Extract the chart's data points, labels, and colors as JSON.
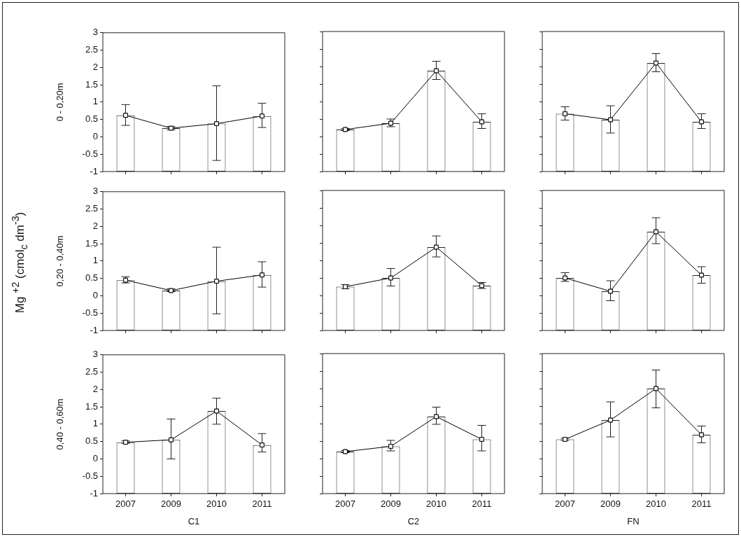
{
  "chart_data": [
    {
      "type": "bar",
      "ylabel": "0 - 0,20m",
      "categories": [
        "2007",
        "2009",
        "2010",
        "2011"
      ],
      "ylim": [
        -1,
        3
      ],
      "yticks": [
        -1,
        -0.5,
        0,
        0.5,
        1,
        1.5,
        2,
        2.5,
        3
      ],
      "grid": false,
      "legend": false,
      "tick_labels": "y",
      "annotations": [
        "Mg $^{+2}$ (cmol$_{c}$ dm$^{-3}$)"
      ],
      "series": [
        {
          "color": "#ffffff",
          "base": [
            -1,
            -1,
            -1,
            -1
          ],
          "values": [
            1.62,
            1.25,
            1.38,
            1.6
          ]
        },
        {
          "type": "line",
          "color": "#000000",
          "marker": "square",
          "values": [
            0.62,
            0.25,
            0.38,
            0.6
          ],
          "errors": [
            [
              0.33,
              0.93
            ],
            [
              0.2,
              0.3
            ],
            [
              -0.68,
              1.47
            ],
            [
              0.27,
              0.97
            ]
          ]
        }
      ]
    },
    {
      "type": "bar",
      "categories": [
        "2007",
        "2009",
        "2010",
        "2011"
      ],
      "ylim": [
        -1,
        3
      ],
      "yticks": [
        -1,
        -0.5,
        0,
        0.5,
        1,
        1.5,
        2,
        2.5,
        3
      ],
      "grid": false,
      "legend": false,
      "tick_labels": false,
      "series": [
        {
          "color": "#ffffff",
          "base": [
            -1,
            -1,
            -1,
            -1
          ],
          "values": [
            1.2,
            1.38,
            2.88,
            1.42
          ]
        },
        {
          "type": "line",
          "color": "#000000",
          "marker": "square",
          "values": [
            0.2,
            0.38,
            1.88,
            0.42
          ],
          "errors": [
            [
              0.17,
              0.23
            ],
            [
              0.28,
              0.5
            ],
            [
              1.63,
              2.15
            ],
            [
              0.23,
              0.65
            ]
          ]
        }
      ]
    },
    {
      "type": "bar",
      "categories": [
        "2007",
        "2009",
        "2010",
        "2011"
      ],
      "ylim": [
        -1,
        3
      ],
      "yticks": [
        -1,
        -0.5,
        0,
        0.5,
        1,
        1.5,
        2,
        2.5,
        3
      ],
      "grid": false,
      "legend": false,
      "tick_labels": false,
      "series": [
        {
          "color": "#ffffff",
          "base": [
            -1,
            -1,
            -1,
            -1
          ],
          "values": [
            1.65,
            1.48,
            3.1,
            1.42
          ]
        },
        {
          "type": "line",
          "color": "#000000",
          "marker": "square",
          "values": [
            0.65,
            0.48,
            2.1,
            0.42
          ],
          "errors": [
            [
              0.47,
              0.85
            ],
            [
              0.1,
              0.88
            ],
            [
              1.85,
              2.37
            ],
            [
              0.23,
              0.65
            ]
          ]
        }
      ]
    },
    {
      "type": "bar",
      "ylabel": "0,20 - 0,40m",
      "categories": [
        "2007",
        "2009",
        "2010",
        "2011"
      ],
      "ylim": [
        -1,
        3
      ],
      "yticks": [
        -1,
        -0.5,
        0,
        0.5,
        1,
        1.5,
        2,
        2.5,
        3
      ],
      "grid": false,
      "legend": false,
      "tick_labels": "y",
      "series": [
        {
          "color": "#ffffff",
          "base": [
            -1,
            -1,
            -1,
            -1
          ],
          "values": [
            1.45,
            1.15,
            1.42,
            1.6
          ]
        },
        {
          "type": "line",
          "color": "#000000",
          "marker": "square",
          "values": [
            0.45,
            0.15,
            0.42,
            0.6
          ],
          "errors": [
            [
              0.37,
              0.55
            ],
            [
              0.12,
              0.2
            ],
            [
              -0.52,
              1.4
            ],
            [
              0.25,
              0.98
            ]
          ]
        }
      ]
    },
    {
      "type": "bar",
      "categories": [
        "2007",
        "2009",
        "2010",
        "2011"
      ],
      "ylim": [
        -1,
        3
      ],
      "yticks": [
        -1,
        -0.5,
        0,
        0.5,
        1,
        1.5,
        2,
        2.5,
        3
      ],
      "grid": false,
      "legend": false,
      "tick_labels": false,
      "series": [
        {
          "color": "#ffffff",
          "base": [
            -1,
            -1,
            -1,
            -1
          ],
          "values": [
            1.25,
            1.5,
            2.38,
            1.28
          ]
        },
        {
          "type": "line",
          "color": "#000000",
          "marker": "square",
          "values": [
            0.25,
            0.5,
            1.38,
            0.28
          ],
          "errors": [
            [
              0.19,
              0.31
            ],
            [
              0.27,
              0.77
            ],
            [
              1.1,
              1.7
            ],
            [
              0.2,
              0.37
            ]
          ]
        }
      ]
    },
    {
      "type": "bar",
      "categories": [
        "2007",
        "2009",
        "2010",
        "2011"
      ],
      "ylim": [
        -1,
        3
      ],
      "yticks": [
        -1,
        -0.5,
        0,
        0.5,
        1,
        1.5,
        2,
        2.5,
        3
      ],
      "grid": false,
      "legend": false,
      "tick_labels": false,
      "series": [
        {
          "color": "#ffffff",
          "base": [
            -1,
            -1,
            -1,
            -1
          ],
          "values": [
            1.5,
            1.12,
            2.82,
            1.58
          ]
        },
        {
          "type": "line",
          "color": "#000000",
          "marker": "square",
          "values": [
            0.5,
            0.12,
            1.82,
            0.58
          ],
          "errors": [
            [
              0.4,
              0.65
            ],
            [
              -0.15,
              0.42
            ],
            [
              1.48,
              2.22
            ],
            [
              0.35,
              0.82
            ]
          ]
        }
      ]
    },
    {
      "type": "bar",
      "ylabel": "0,40 - 0,60m",
      "xlabel": "C1",
      "categories": [
        "2007",
        "2009",
        "2010",
        "2011"
      ],
      "ylim": [
        -1,
        3
      ],
      "yticks": [
        -1,
        -0.5,
        0,
        0.5,
        1,
        1.5,
        2,
        2.5,
        3
      ],
      "grid": false,
      "legend": false,
      "series": [
        {
          "color": "#ffffff",
          "base": [
            -1,
            -1,
            -1,
            -1
          ],
          "values": [
            1.48,
            1.55,
            2.38,
            1.4
          ]
        },
        {
          "type": "line",
          "color": "#000000",
          "marker": "square",
          "values": [
            0.48,
            0.55,
            1.38,
            0.4
          ],
          "errors": [
            [
              0.45,
              0.52
            ],
            [
              0,
              1.15
            ],
            [
              1,
              1.75
            ],
            [
              0.2,
              0.73
            ]
          ]
        }
      ]
    },
    {
      "type": "bar",
      "xlabel": "C2",
      "categories": [
        "2007",
        "2009",
        "2010",
        "2011"
      ],
      "ylim": [
        -1,
        3
      ],
      "yticks": [
        -1,
        -0.5,
        0,
        0.5,
        1,
        1.5,
        2,
        2.5,
        3
      ],
      "grid": false,
      "legend": false,
      "tick_labels": "x",
      "series": [
        {
          "color": "#ffffff",
          "base": [
            -1,
            -1,
            -1,
            -1
          ],
          "values": [
            1.2,
            1.35,
            2.2,
            1.55
          ]
        },
        {
          "type": "line",
          "color": "#000000",
          "marker": "square",
          "values": [
            0.2,
            0.35,
            1.2,
            0.55
          ],
          "errors": [
            [
              0.17,
              0.23
            ],
            [
              0.22,
              0.52
            ],
            [
              0.98,
              1.47
            ],
            [
              0.22,
              0.95
            ]
          ]
        }
      ]
    },
    {
      "type": "bar",
      "xlabel": "FN",
      "categories": [
        "2007",
        "2009",
        "2010",
        "2011"
      ],
      "ylim": [
        -1,
        3
      ],
      "yticks": [
        -1,
        -0.5,
        0,
        0.5,
        1,
        1.5,
        2,
        2.5,
        3
      ],
      "grid": false,
      "legend": false,
      "tick_labels": "x",
      "series": [
        {
          "color": "#ffffff",
          "base": [
            -1,
            -1,
            -1,
            -1
          ],
          "values": [
            1.55,
            2.1,
            3.0,
            1.68
          ]
        },
        {
          "type": "line",
          "color": "#000000",
          "marker": "square",
          "values": [
            0.55,
            1.1,
            2.0,
            0.68
          ],
          "errors": [
            [
              0.52,
              0.58
            ],
            [
              0.62,
              1.62
            ],
            [
              1.45,
              2.53
            ],
            [
              0.45,
              0.93
            ]
          ]
        }
      ]
    }
  ]
}
